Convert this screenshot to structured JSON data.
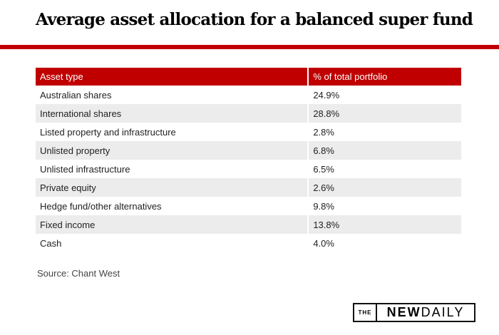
{
  "title": "Average asset allocation for a balanced super fund",
  "table": {
    "headers": [
      "Asset type",
      "% of total portfolio"
    ],
    "rows": [
      [
        "Australian shares",
        "24.9%"
      ],
      [
        "International shares",
        "28.8%"
      ],
      [
        "Listed property and infrastructure",
        "2.8%"
      ],
      [
        "Unlisted property",
        "6.8%"
      ],
      [
        "Unlisted infrastructure",
        "6.5%"
      ],
      [
        "Private equity",
        "2.6%"
      ],
      [
        "Hedge fund/other alternatives",
        "9.8%"
      ],
      [
        "Fixed income",
        "13.8%"
      ],
      [
        "Cash",
        "4.0%"
      ]
    ]
  },
  "source": "Source: Chant West",
  "logo": {
    "the": "THE",
    "new": "NEW",
    "daily": "DAILY"
  },
  "colors": {
    "accent": "#c00000",
    "stripe": "#ececec"
  }
}
